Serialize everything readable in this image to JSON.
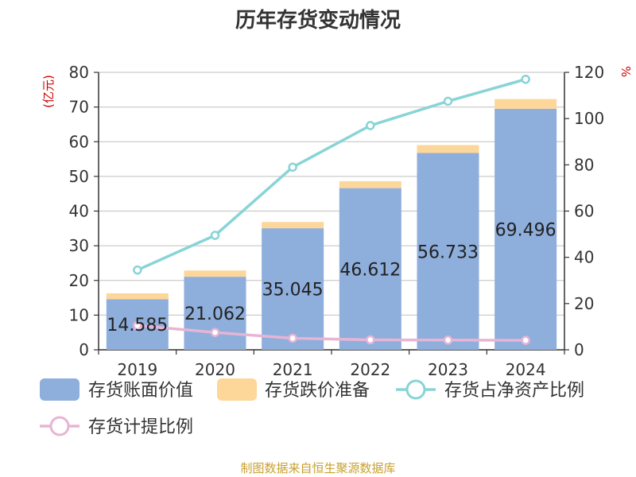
{
  "chart_data": {
    "type": "bar+line",
    "title": "历年存货变动情况",
    "categories": [
      "2019",
      "2020",
      "2021",
      "2022",
      "2023",
      "2024"
    ],
    "left_axis": {
      "unit_label": "(亿元)",
      "ticks": [
        "0",
        "10",
        "20",
        "30",
        "40",
        "50",
        "60",
        "70",
        "80"
      ],
      "ylim": [
        0,
        80
      ]
    },
    "right_axis": {
      "unit_label": "%",
      "ticks": [
        "0",
        "20",
        "40",
        "60",
        "80",
        "100",
        "120"
      ],
      "ylim": [
        0,
        120
      ]
    },
    "series": [
      {
        "name": "存货账面价值",
        "type": "bar",
        "axis": "left",
        "stack": "s",
        "color": "#8eaedc",
        "values": [
          14.585,
          21.062,
          35.045,
          46.612,
          56.733,
          69.496
        ],
        "labels": [
          "14.585",
          "21.062",
          "35.045",
          "46.612",
          "56.733",
          "69.496"
        ]
      },
      {
        "name": "存货跌价准备",
        "type": "bar",
        "axis": "left",
        "stack": "s",
        "color": "#fdd699",
        "values": [
          1.7,
          1.8,
          1.8,
          2.0,
          2.3,
          2.8
        ]
      },
      {
        "name": "存货占净资产比例",
        "type": "line",
        "axis": "right",
        "color": "#88d4d6",
        "values": [
          34.5,
          49.5,
          79,
          97,
          107.5,
          117
        ]
      },
      {
        "name": "存货计提比例",
        "type": "line",
        "axis": "right",
        "color": "#e8b4d4",
        "values": [
          10.5,
          7.5,
          5,
          4.3,
          4.2,
          4.1
        ]
      }
    ]
  },
  "footer": {
    "source": "制图数据来自恒生聚源数据库"
  }
}
